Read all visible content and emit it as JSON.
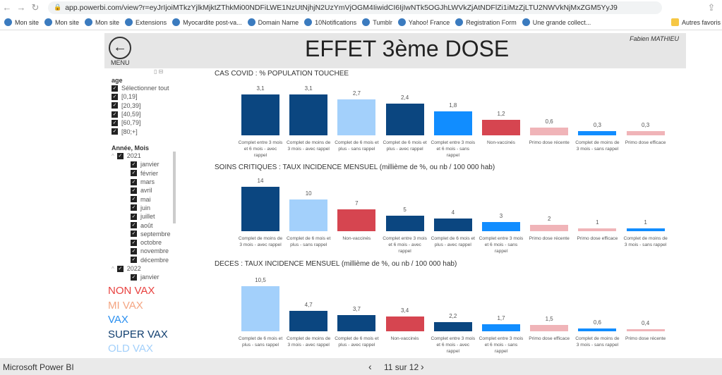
{
  "browser": {
    "url": "app.powerbi.com/view?r=eyJrIjoiMTkzYjlkMjktZThkMi00NDFiLWE1NzUtNjhjN2UzYmVjOGM4IiwidCI6IjIwNTk5OGJhLWVkZjAtNDFlZi1iMzZjLTU2NWVkNjMxZGM5YyJ9",
    "bookmarks": [
      "Mon site",
      "Mon site",
      "Mon site",
      "Extensions",
      "Myocardite post-va...",
      "Domain Name",
      "10Notifications",
      "Tumblr",
      "Yahoo! France",
      "Registration Form",
      "Une grande collect...",
      "Autres favoris"
    ]
  },
  "header": {
    "menu_label": "MENU",
    "title": "EFFET 3ème DOSE",
    "author": "Fabien MATHIEU"
  },
  "slicers": {
    "age": {
      "label": "age",
      "items": [
        "Sélectionner tout",
        "[0,19]",
        "[20,39]",
        "[40,59]",
        "[60,79]",
        "[80;+]"
      ]
    },
    "period": {
      "label": "Année, Mois",
      "years": [
        {
          "year": "2021",
          "months": [
            "janvier",
            "février",
            "mars",
            "avril",
            "mai",
            "juin",
            "juillet",
            "août",
            "septembre",
            "octobre",
            "novembre",
            "décembre"
          ]
        },
        {
          "year": "2022",
          "months": [
            "janvier"
          ]
        }
      ]
    }
  },
  "legend": [
    {
      "label": "NON VAX",
      "color": "#e8413f"
    },
    {
      "label": "MI VAX",
      "color": "#f4a582"
    },
    {
      "label": "VAX",
      "color": "#2a8ff0"
    },
    {
      "label": "SUPER VAX",
      "color": "#0f3d6e"
    },
    {
      "label": "OLD VAX",
      "color": "#a3d0fb"
    }
  ],
  "colors": {
    "super": "#0b4680",
    "old": "#a3d0fb",
    "vax": "#118dff",
    "non": "#d64550",
    "mi": "#f0b4b8"
  },
  "chart_data": [
    {
      "type": "bar",
      "title": "CAS COVID : % POPULATION TOUCHEE",
      "categories": [
        "Complet entre 3 mois et 6 mois - avec rappel",
        "Complet de moins de 3 mois - avec rappel",
        "Complet de 6 mois et plus - sans rappel",
        "Complet de 6 mois et plus - avec rappel",
        "Complet entre 3 mois et 6 mois - sans rappel",
        "Non-vaccinés",
        "Primo dose récente",
        "Complet de moins de 3 mois - sans rappel",
        "Primo dose efficace"
      ],
      "values": [
        3.1,
        3.1,
        2.7,
        2.4,
        1.8,
        1.2,
        0.6,
        0.3,
        0.3
      ],
      "labels": [
        "3,1",
        "3,1",
        "2,7",
        "2,4",
        "1,8",
        "1,2",
        "0,6",
        "0,3",
        "0,3"
      ],
      "color_keys": [
        "super",
        "super",
        "old",
        "super",
        "vax",
        "non",
        "mi",
        "vax",
        "mi"
      ]
    },
    {
      "type": "bar",
      "title": "SOINS CRITIQUES : TAUX INCIDENCE MENSUEL (millième de %, ou nb / 100 000 hab)",
      "categories": [
        "Complet de moins de 3 mois - avec rappel",
        "Complet de 6 mois et plus - sans rappel",
        "Non-vaccinés",
        "Complet entre 3 mois et 6 mois - avec rappel",
        "Complet de 6 mois et plus - avec rappel",
        "Complet entre 3 mois et 6 mois - sans rappel",
        "Primo dose récente",
        "Primo dose efficace",
        "Complet de moins de 3 mois - sans rappel"
      ],
      "values": [
        14,
        10,
        7,
        5,
        4,
        3,
        2,
        1,
        1
      ],
      "labels": [
        "14",
        "10",
        "7",
        "5",
        "4",
        "3",
        "2",
        "1",
        "1"
      ],
      "color_keys": [
        "super",
        "old",
        "non",
        "super",
        "super",
        "vax",
        "mi",
        "mi",
        "vax"
      ]
    },
    {
      "type": "bar",
      "title": "DECES : TAUX INCIDENCE MENSUEL (millième de %, ou nb / 100 000 hab)",
      "categories": [
        "Complet de 6 mois et plus - sans rappel",
        "Complet de moins de 3 mois - avec rappel",
        "Complet de 6 mois et plus - avec rappel",
        "Non-vaccinés",
        "Complet entre 3 mois et 6 mois - avec rappel",
        "Complet entre 3 mois et 6 mois - sans rappel",
        "Primo dose efficace",
        "Complet de moins de 3 mois - sans rappel",
        "Primo dose récente"
      ],
      "values": [
        10.5,
        4.7,
        3.7,
        3.4,
        2.2,
        1.7,
        1.5,
        0.6,
        0.4
      ],
      "labels": [
        "10,5",
        "4,7",
        "3,7",
        "3,4",
        "2,2",
        "1,7",
        "1,5",
        "0,6",
        "0,4"
      ],
      "color_keys": [
        "old",
        "super",
        "super",
        "non",
        "super",
        "vax",
        "mi",
        "vax",
        "mi"
      ]
    }
  ],
  "footer": {
    "app": "Microsoft Power BI",
    "page": "11 sur 12"
  }
}
